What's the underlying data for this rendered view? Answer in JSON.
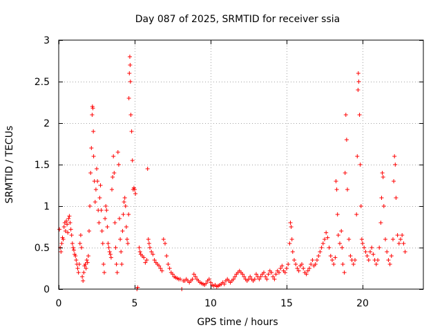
{
  "chart_data": {
    "type": "scatter",
    "title": "Day 087 of 2025, SRMTID for receiver ssia",
    "xlabel": "GPS time / hours",
    "ylabel": "SRMTID / TECUs",
    "xlim": [
      0,
      24
    ],
    "ylim": [
      0,
      3
    ],
    "xticks": [
      0,
      5,
      10,
      15,
      20
    ],
    "xtick_labels": [
      "0",
      "5",
      "10",
      "15",
      "20"
    ],
    "yticks": [
      0,
      0.5,
      1,
      1.5,
      2,
      2.5,
      3
    ],
    "ytick_labels": [
      "0",
      "0.5",
      "1",
      "1.5",
      "2",
      "2.5",
      "3"
    ],
    "grid": true,
    "marker": "+",
    "color": "#ff0000",
    "series": [
      {
        "name": "SRMTID",
        "points": [
          [
            0.05,
            0.72
          ],
          [
            0.1,
            0.5
          ],
          [
            0.15,
            0.45
          ],
          [
            0.2,
            0.55
          ],
          [
            0.25,
            0.62
          ],
          [
            0.3,
            0.6
          ],
          [
            0.35,
            0.75
          ],
          [
            0.4,
            0.8
          ],
          [
            0.45,
            0.7
          ],
          [
            0.5,
            0.82
          ],
          [
            0.55,
            0.78
          ],
          [
            0.6,
            0.68
          ],
          [
            0.65,
            0.85
          ],
          [
            0.7,
            0.88
          ],
          [
            0.75,
            0.8
          ],
          [
            0.8,
            0.72
          ],
          [
            0.85,
            0.65
          ],
          [
            0.9,
            0.55
          ],
          [
            0.95,
            0.5
          ],
          [
            1.0,
            0.47
          ],
          [
            1.05,
            0.42
          ],
          [
            1.1,
            0.4
          ],
          [
            1.15,
            0.35
          ],
          [
            1.2,
            0.3
          ],
          [
            1.25,
            0.25
          ],
          [
            1.3,
            0.2
          ],
          [
            1.35,
            0.3
          ],
          [
            1.4,
            0.55
          ],
          [
            1.45,
            0.65
          ],
          [
            1.5,
            0.5
          ],
          [
            1.55,
            0.15
          ],
          [
            1.6,
            0.1
          ],
          [
            1.65,
            0.2
          ],
          [
            1.7,
            0.28
          ],
          [
            1.75,
            0.3
          ],
          [
            1.8,
            0.25
          ],
          [
            1.85,
            0.35
          ],
          [
            1.9,
            0.32
          ],
          [
            1.95,
            0.4
          ],
          [
            2.0,
            0.7
          ],
          [
            2.05,
            1.0
          ],
          [
            2.1,
            1.4
          ],
          [
            2.15,
            1.7
          ],
          [
            2.2,
            2.1
          ],
          [
            2.22,
            2.2
          ],
          [
            2.25,
            2.18
          ],
          [
            2.28,
            1.9
          ],
          [
            2.3,
            1.6
          ],
          [
            2.35,
            1.3
          ],
          [
            2.4,
            1.05
          ],
          [
            2.45,
            1.2
          ],
          [
            2.5,
            1.45
          ],
          [
            2.55,
            1.3
          ],
          [
            2.6,
            0.95
          ],
          [
            2.65,
            0.8
          ],
          [
            2.7,
            1.1
          ],
          [
            2.75,
            1.25
          ],
          [
            2.8,
            0.95
          ],
          [
            2.85,
            0.7
          ],
          [
            2.9,
            0.55
          ],
          [
            2.95,
            0.3
          ],
          [
            3.0,
            0.2
          ],
          [
            3.05,
            0.85
          ],
          [
            3.1,
            1.0
          ],
          [
            3.15,
            0.95
          ],
          [
            3.2,
            0.75
          ],
          [
            3.25,
            0.55
          ],
          [
            3.3,
            0.5
          ],
          [
            3.35,
            0.45
          ],
          [
            3.4,
            0.42
          ],
          [
            3.45,
            0.38
          ],
          [
            3.5,
            1.2
          ],
          [
            3.55,
            1.35
          ],
          [
            3.6,
            1.6
          ],
          [
            3.65,
            1.4
          ],
          [
            3.7,
            0.8
          ],
          [
            3.75,
            0.5
          ],
          [
            3.8,
            0.3
          ],
          [
            3.85,
            0.2
          ],
          [
            3.9,
            1.65
          ],
          [
            3.95,
            1.5
          ],
          [
            4.0,
            0.85
          ],
          [
            4.05,
            0.6
          ],
          [
            4.1,
            0.45
          ],
          [
            4.15,
            0.3
          ],
          [
            4.2,
            0.7
          ],
          [
            4.25,
            0.9
          ],
          [
            4.3,
            1.05
          ],
          [
            4.35,
            1.1
          ],
          [
            4.4,
            1.0
          ],
          [
            4.45,
            0.75
          ],
          [
            4.5,
            0.6
          ],
          [
            4.55,
            0.55
          ],
          [
            4.6,
            0.9
          ],
          [
            4.62,
            2.3
          ],
          [
            4.65,
            2.6
          ],
          [
            4.68,
            2.8
          ],
          [
            4.7,
            2.7
          ],
          [
            4.72,
            2.5
          ],
          [
            4.75,
            2.1
          ],
          [
            4.8,
            1.9
          ],
          [
            4.85,
            1.55
          ],
          [
            4.9,
            1.2
          ],
          [
            4.95,
            1.22
          ],
          [
            5.0,
            1.2
          ],
          [
            5.05,
            1.15
          ],
          [
            5.15,
            0.0
          ],
          [
            5.2,
            0.02
          ],
          [
            5.3,
            0.5
          ],
          [
            5.35,
            0.45
          ],
          [
            5.4,
            0.42
          ],
          [
            5.5,
            0.4
          ],
          [
            5.6,
            0.38
          ],
          [
            5.7,
            0.32
          ],
          [
            5.8,
            0.35
          ],
          [
            5.85,
            1.45
          ],
          [
            5.9,
            0.6
          ],
          [
            5.95,
            0.55
          ],
          [
            6.0,
            0.5
          ],
          [
            6.1,
            0.45
          ],
          [
            6.2,
            0.42
          ],
          [
            6.3,
            0.35
          ],
          [
            6.4,
            0.32
          ],
          [
            6.5,
            0.3
          ],
          [
            6.6,
            0.28
          ],
          [
            6.7,
            0.25
          ],
          [
            6.8,
            0.22
          ],
          [
            6.9,
            0.6
          ],
          [
            7.0,
            0.55
          ],
          [
            7.1,
            0.4
          ],
          [
            7.2,
            0.3
          ],
          [
            7.3,
            0.25
          ],
          [
            7.4,
            0.2
          ],
          [
            7.5,
            0.18
          ],
          [
            7.6,
            0.15
          ],
          [
            7.7,
            0.14
          ],
          [
            7.8,
            0.13
          ],
          [
            7.9,
            0.12
          ],
          [
            8.0,
            0.12
          ],
          [
            8.1,
            0.0
          ],
          [
            8.2,
            0.1
          ],
          [
            8.3,
            0.1
          ],
          [
            8.4,
            0.12
          ],
          [
            8.5,
            0.1
          ],
          [
            8.6,
            0.08
          ],
          [
            8.7,
            0.1
          ],
          [
            8.8,
            0.12
          ],
          [
            8.9,
            0.18
          ],
          [
            9.0,
            0.15
          ],
          [
            9.1,
            0.12
          ],
          [
            9.2,
            0.1
          ],
          [
            9.3,
            0.08
          ],
          [
            9.4,
            0.07
          ],
          [
            9.5,
            0.06
          ],
          [
            9.6,
            0.05
          ],
          [
            9.7,
            0.07
          ],
          [
            9.8,
            0.1
          ],
          [
            9.9,
            0.12
          ],
          [
            10.0,
            0.08
          ],
          [
            10.1,
            0.05
          ],
          [
            10.2,
            0.04
          ],
          [
            10.3,
            0.05
          ],
          [
            10.4,
            0.03
          ],
          [
            10.5,
            0.04
          ],
          [
            10.6,
            0.05
          ],
          [
            10.7,
            0.06
          ],
          [
            10.8,
            0.08
          ],
          [
            10.9,
            0.06
          ],
          [
            11.0,
            0.1
          ],
          [
            11.1,
            0.12
          ],
          [
            11.2,
            0.1
          ],
          [
            11.3,
            0.08
          ],
          [
            11.4,
            0.1
          ],
          [
            11.5,
            0.12
          ],
          [
            11.6,
            0.15
          ],
          [
            11.7,
            0.18
          ],
          [
            11.8,
            0.2
          ],
          [
            11.9,
            0.22
          ],
          [
            12.0,
            0.2
          ],
          [
            12.1,
            0.18
          ],
          [
            12.2,
            0.15
          ],
          [
            12.3,
            0.12
          ],
          [
            12.4,
            0.1
          ],
          [
            12.5,
            0.12
          ],
          [
            12.6,
            0.15
          ],
          [
            12.7,
            0.12
          ],
          [
            12.8,
            0.1
          ],
          [
            12.9,
            0.12
          ],
          [
            13.0,
            0.18
          ],
          [
            13.1,
            0.15
          ],
          [
            13.2,
            0.12
          ],
          [
            13.3,
            0.15
          ],
          [
            13.4,
            0.18
          ],
          [
            13.5,
            0.2
          ],
          [
            13.6,
            0.15
          ],
          [
            13.7,
            0.12
          ],
          [
            13.8,
            0.18
          ],
          [
            13.9,
            0.22
          ],
          [
            14.0,
            0.2
          ],
          [
            14.1,
            0.15
          ],
          [
            14.2,
            0.12
          ],
          [
            14.3,
            0.18
          ],
          [
            14.4,
            0.22
          ],
          [
            14.5,
            0.2
          ],
          [
            14.6,
            0.25
          ],
          [
            14.7,
            0.28
          ],
          [
            14.8,
            0.22
          ],
          [
            14.9,
            0.2
          ],
          [
            15.0,
            0.25
          ],
          [
            15.1,
            0.3
          ],
          [
            15.2,
            0.55
          ],
          [
            15.25,
            0.8
          ],
          [
            15.3,
            0.75
          ],
          [
            15.35,
            0.6
          ],
          [
            15.4,
            0.45
          ],
          [
            15.5,
            0.35
          ],
          [
            15.6,
            0.3
          ],
          [
            15.7,
            0.25
          ],
          [
            15.8,
            0.22
          ],
          [
            15.9,
            0.28
          ],
          [
            16.0,
            0.3
          ],
          [
            16.1,
            0.25
          ],
          [
            16.2,
            0.2
          ],
          [
            16.3,
            0.18
          ],
          [
            16.4,
            0.22
          ],
          [
            16.5,
            0.25
          ],
          [
            16.6,
            0.3
          ],
          [
            16.7,
            0.35
          ],
          [
            16.8,
            0.28
          ],
          [
            16.9,
            0.3
          ],
          [
            17.0,
            0.35
          ],
          [
            17.1,
            0.4
          ],
          [
            17.2,
            0.45
          ],
          [
            17.3,
            0.5
          ],
          [
            17.4,
            0.55
          ],
          [
            17.5,
            0.6
          ],
          [
            17.6,
            0.68
          ],
          [
            17.7,
            0.62
          ],
          [
            17.8,
            0.5
          ],
          [
            17.9,
            0.4
          ],
          [
            18.0,
            0.35
          ],
          [
            18.1,
            0.3
          ],
          [
            18.2,
            0.38
          ],
          [
            18.25,
            1.3
          ],
          [
            18.3,
            1.2
          ],
          [
            18.35,
            0.9
          ],
          [
            18.4,
            0.65
          ],
          [
            18.5,
            0.55
          ],
          [
            18.6,
            0.7
          ],
          [
            18.65,
            0.5
          ],
          [
            18.7,
            0.3
          ],
          [
            18.8,
            0.2
          ],
          [
            18.85,
            1.4
          ],
          [
            18.9,
            2.1
          ],
          [
            18.95,
            1.8
          ],
          [
            19.0,
            1.2
          ],
          [
            19.1,
            0.6
          ],
          [
            19.2,
            0.4
          ],
          [
            19.3,
            0.35
          ],
          [
            19.4,
            0.3
          ],
          [
            19.5,
            0.35
          ],
          [
            19.6,
            0.9
          ],
          [
            19.65,
            1.6
          ],
          [
            19.7,
            2.4
          ],
          [
            19.72,
            2.6
          ],
          [
            19.75,
            2.5
          ],
          [
            19.8,
            2.1
          ],
          [
            19.85,
            1.5
          ],
          [
            19.9,
            1.0
          ],
          [
            19.95,
            0.6
          ],
          [
            20.0,
            0.55
          ],
          [
            20.1,
            0.5
          ],
          [
            20.2,
            0.45
          ],
          [
            20.3,
            0.4
          ],
          [
            20.4,
            0.35
          ],
          [
            20.5,
            0.45
          ],
          [
            20.6,
            0.5
          ],
          [
            20.7,
            0.42
          ],
          [
            20.8,
            0.35
          ],
          [
            20.9,
            0.3
          ],
          [
            21.0,
            0.35
          ],
          [
            21.1,
            0.5
          ],
          [
            21.2,
            0.8
          ],
          [
            21.25,
            1.1
          ],
          [
            21.3,
            1.4
          ],
          [
            21.35,
            1.35
          ],
          [
            21.4,
            1.0
          ],
          [
            21.5,
            0.6
          ],
          [
            21.6,
            0.45
          ],
          [
            21.7,
            0.35
          ],
          [
            21.8,
            0.3
          ],
          [
            21.9,
            0.4
          ],
          [
            22.0,
            0.6
          ],
          [
            22.05,
            1.3
          ],
          [
            22.1,
            1.6
          ],
          [
            22.15,
            1.5
          ],
          [
            22.2,
            1.1
          ],
          [
            22.3,
            0.65
          ],
          [
            22.4,
            0.55
          ],
          [
            22.5,
            0.6
          ],
          [
            22.6,
            0.65
          ],
          [
            22.7,
            0.55
          ],
          [
            22.8,
            0.45
          ]
        ]
      }
    ]
  }
}
